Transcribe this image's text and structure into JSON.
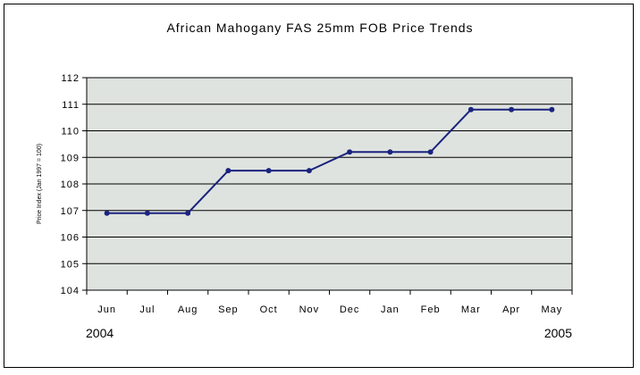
{
  "chart_data": {
    "type": "line",
    "title": "African Mahogany FAS 25mm FOB Price Trends",
    "ylabel": "Price Index (Jan 1997 = 100)",
    "xlabel": "",
    "categories": [
      "Jun",
      "Jul",
      "Aug",
      "Sep",
      "Oct",
      "Nov",
      "Dec",
      "Jan",
      "Feb",
      "Mar",
      "Apr",
      "May"
    ],
    "series": [
      {
        "values": [
          106.9,
          106.9,
          106.9,
          108.5,
          108.5,
          108.5,
          109.2,
          109.2,
          109.2,
          110.8,
          110.8,
          110.8
        ]
      }
    ],
    "ylim": [
      104,
      112
    ],
    "yticks": [
      "104",
      "105",
      "106",
      "107",
      "108",
      "109",
      "110",
      "111",
      "112"
    ],
    "year_labels": {
      "start": "2004",
      "end": "2005"
    },
    "grid": true,
    "colors": {
      "line": "#1a237e",
      "plot_bg": "#dfe3df",
      "grid": "#000000"
    }
  }
}
